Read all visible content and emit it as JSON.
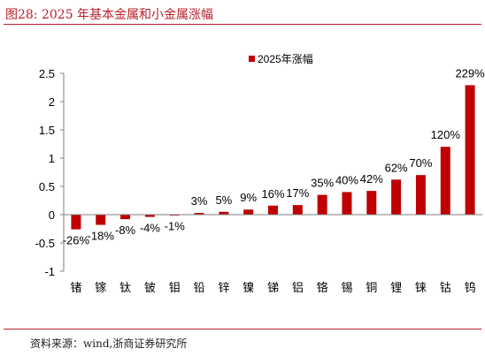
{
  "figure": {
    "title": "图28:   2025 年基本金属和小金属涨幅",
    "source": "资料来源：wind,浙商证券研究所"
  },
  "colors": {
    "bar": "#c00000",
    "accent": "#b8202a",
    "axis": "#7f7f7f",
    "text": "#000000"
  },
  "chart_data": {
    "type": "bar",
    "categories": [
      "锗",
      "镓",
      "钛",
      "铍",
      "钼",
      "铅",
      "锌",
      "镍",
      "锑",
      "铝",
      "铬",
      "锡",
      "铜",
      "锂",
      "铼",
      "钴",
      "钨"
    ],
    "series": [
      {
        "name": "2025年涨幅",
        "values": [
          -0.26,
          -0.18,
          -0.08,
          -0.04,
          -0.01,
          0.03,
          0.05,
          0.09,
          0.16,
          0.17,
          0.35,
          0.4,
          0.42,
          0.62,
          0.7,
          1.2,
          2.29
        ],
        "data_labels": [
          "-26%",
          "-18%",
          "-8%",
          "-4%",
          "-1%",
          "3%",
          "5%",
          "9%",
          "16%",
          "17%",
          "35%",
          "40%",
          "42%",
          "62%",
          "70%",
          "120%",
          "229%"
        ]
      }
    ],
    "ylim": [
      -1,
      2.5
    ],
    "yticks": [
      -1,
      -0.5,
      0,
      0.5,
      1,
      1.5,
      2,
      2.5
    ],
    "ytick_labels": [
      "-1",
      "-0.5",
      "0",
      "0.5",
      "1",
      "1.5",
      "2",
      "2.5"
    ],
    "legend": {
      "label": "2025年涨幅",
      "position": "top-center"
    },
    "grid": false
  }
}
